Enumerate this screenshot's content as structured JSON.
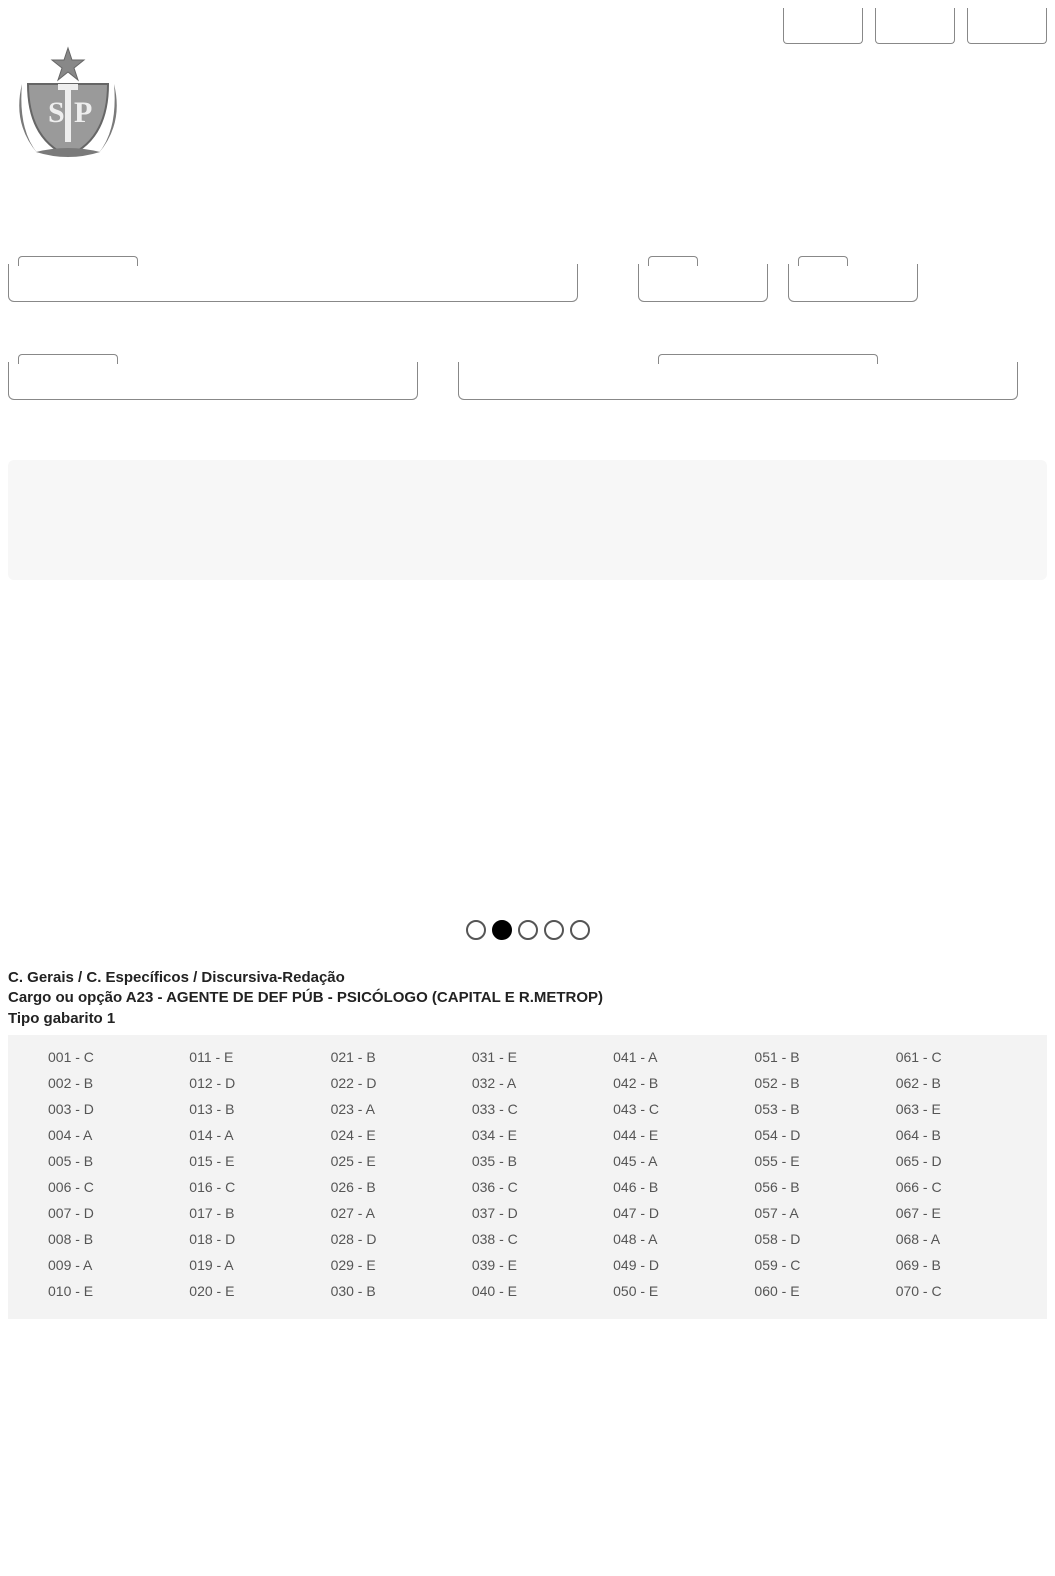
{
  "header": {
    "line1": "C. Gerais / C. Específicos / Discursiva-Redação",
    "line2": "Cargo ou opção A23 - AGENTE DE DEF PÚB - PSICÓLOGO (CAPITAL E R.METROP)",
    "line3": "Tipo gabarito 1"
  },
  "bubbles": {
    "count": 5,
    "filled_index": 1
  },
  "answers": {
    "columns": 7,
    "rows_per_col": 10,
    "cells": [
      [
        "001 - C",
        "002 - B",
        "003 - D",
        "004 - A",
        "005 - B",
        "006 - C",
        "007 - D",
        "008 - B",
        "009 - A",
        "010 - E"
      ],
      [
        "011 - E",
        "012 - D",
        "013 - B",
        "014 - A",
        "015 - E",
        "016 - C",
        "017 - B",
        "018 - D",
        "019 - A",
        "020 - E"
      ],
      [
        "021 - B",
        "022 - D",
        "023 - A",
        "024 - E",
        "025 - E",
        "026 - B",
        "027 - A",
        "028 - D",
        "029 - E",
        "030 - B"
      ],
      [
        "031 - E",
        "032 - A",
        "033 - C",
        "034 - E",
        "035 - B",
        "036 - C",
        "037 - D",
        "038 - C",
        "039 - E",
        "040 - E"
      ],
      [
        "041 - A",
        "042 - B",
        "043 - C",
        "044 - E",
        "045 - A",
        "046 - B",
        "047 - D",
        "048 - A",
        "049 - D",
        "050 - E"
      ],
      [
        "051 - B",
        "052 - B",
        "053 - B",
        "054 - D",
        "055 - E",
        "056 - B",
        "057 - A",
        "058 - D",
        "059 - C",
        "060 - E"
      ],
      [
        "061 - C",
        "062 - B",
        "063 - E",
        "064 - B",
        "065 - D",
        "066 - C",
        "067 - E",
        "068 - A",
        "069 - B",
        "070 - C"
      ]
    ]
  },
  "colors": {
    "panel_bg": "#f7f7f7",
    "answers_bg": "#f3f3f3",
    "border": "#888888",
    "text": "#333333",
    "muted": "#555555"
  }
}
